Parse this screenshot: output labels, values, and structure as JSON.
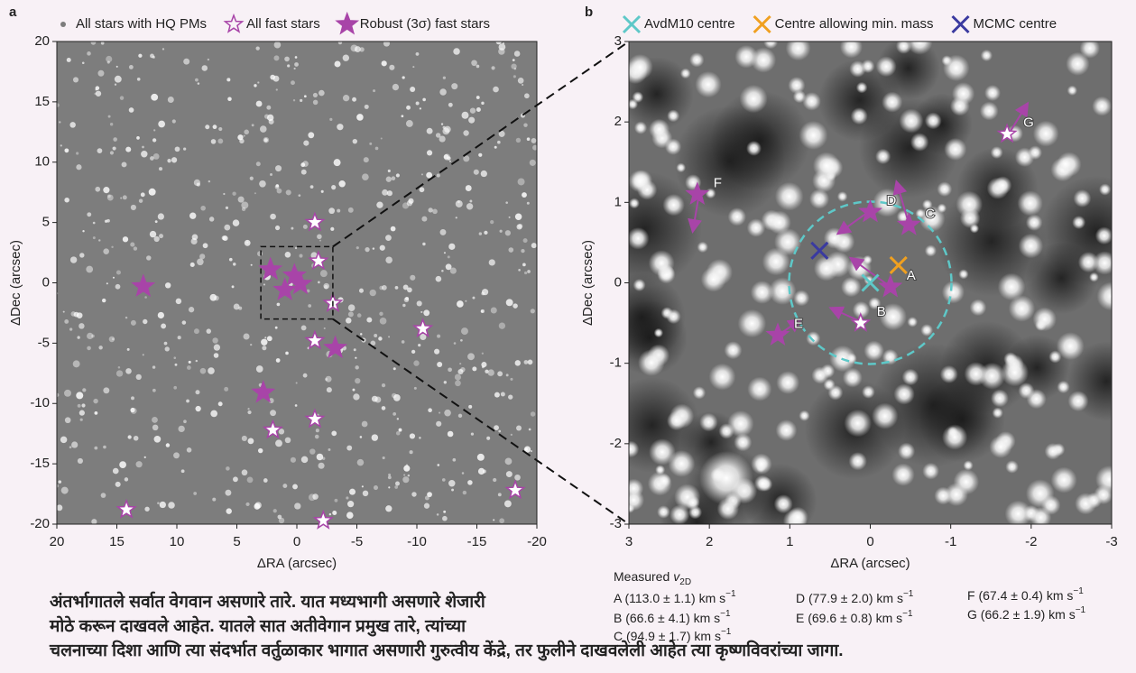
{
  "chart_data": [
    {
      "type": "scatter",
      "panel_label": "a",
      "xlabel": "ΔRA (arcsec)",
      "ylabel": "ΔDec (arcsec)",
      "xlim": [
        20,
        -20
      ],
      "ylim": [
        -20,
        20
      ],
      "xticks": [
        20,
        15,
        10,
        5,
        0,
        -5,
        -10,
        -15,
        -20
      ],
      "yticks": [
        -20,
        -15,
        -10,
        -5,
        0,
        5,
        10,
        15,
        20
      ],
      "series": [
        {
          "name": "All stars with HQ PMs",
          "color": "#7d7d7d",
          "marker": "dot"
        },
        {
          "name": "All fast stars",
          "color": "#a844a8",
          "marker": "open-star",
          "x": [
            -1.5,
            -1.8,
            -3.0,
            -1.5,
            -10.5,
            -1.5,
            2.0,
            14.2,
            -2.2,
            -18.2
          ],
          "y": [
            5.0,
            1.8,
            -1.7,
            -4.8,
            -3.8,
            -11.3,
            -12.2,
            -18.8,
            -19.7,
            -17.2
          ]
        },
        {
          "name": "Robust (3σ) fast stars",
          "color": "#a844a8",
          "marker": "star",
          "x": [
            12.8,
            2.2,
            0.2,
            -0.3,
            1.0,
            -3.2,
            2.8
          ],
          "y": [
            -0.3,
            1.1,
            0.6,
            -0.1,
            -0.6,
            -5.4,
            -9.1
          ]
        }
      ]
    },
    {
      "type": "scatter",
      "panel_label": "b",
      "xlabel": "ΔRA (arcsec)",
      "ylabel": "ΔDec (arcsec)",
      "xlim": [
        3,
        -3
      ],
      "ylim": [
        -3,
        3
      ],
      "xticks": [
        3,
        2,
        1,
        0,
        -1,
        -2,
        -3
      ],
      "yticks": [
        -3,
        -2,
        -1,
        0,
        1,
        2,
        3
      ],
      "series": [
        {
          "name": "AvdM10 centre",
          "color": "#5ec8c8",
          "marker": "cross",
          "x": [
            0
          ],
          "y": [
            0
          ]
        },
        {
          "name": "Centre allowing min. mass",
          "color": "#f0a020",
          "marker": "cross",
          "x": [
            -0.35
          ],
          "y": [
            0.22
          ]
        },
        {
          "name": "MCMC centre",
          "color": "#3a3aa0",
          "marker": "cross",
          "x": [
            0.63
          ],
          "y": [
            0.4
          ]
        },
        {
          "color": "#a844a8",
          "marker": "star",
          "labels": [
            "A",
            "C",
            "D",
            "E",
            "F"
          ],
          "x": [
            -0.25,
            -0.48,
            0.0,
            1.15,
            2.15
          ],
          "y": [
            -0.05,
            0.72,
            0.88,
            -0.65,
            1.1
          ]
        },
        {
          "color": "#a844a8",
          "marker": "open-star",
          "labels": [
            "B",
            "G"
          ],
          "x": [
            0.12,
            -1.7
          ],
          "y": [
            -0.5,
            1.85
          ]
        }
      ]
    }
  ],
  "caption": {
    "measured": {
      "text": "Measured",
      "var": "v",
      "sub": "2D"
    },
    "entries": [
      {
        "text": "A (113.0 ± 1.1) km s",
        "sup": "−1"
      },
      {
        "text": "B (66.6 ± 4.1) km s",
        "sup": "−1"
      },
      {
        "text": "C (94.9 ± 1.7) km s",
        "sup": "−1"
      },
      {
        "text": "D (77.9 ± 2.0) km s",
        "sup": "−1"
      },
      {
        "text": "E (69.6 ± 0.8) km s",
        "sup": "−1"
      },
      {
        "text": "F (67.4 ± 0.4) km s",
        "sup": "−1"
      },
      {
        "text": "G (66.2 ± 1.9) km s",
        "sup": "−1"
      }
    ],
    "lines": [
      "अंतर्भागातले सर्वात वेगवान असणारे तारे. यात मध्यभागी असणारे शेजारी",
      "मोठे करून दाखवले आहेत. यातले सात अतीवेगान प्रमुख तारे, त्यांच्या",
      "चलनाच्या दिशा आणि त्या संदर्भात वर्तुळाकार भागात असणारी गुरुत्वीय केंद्रे, तर फुलीने दाखवलेली आहेत त्या कृष्णविवरांच्या जागा."
    ]
  }
}
